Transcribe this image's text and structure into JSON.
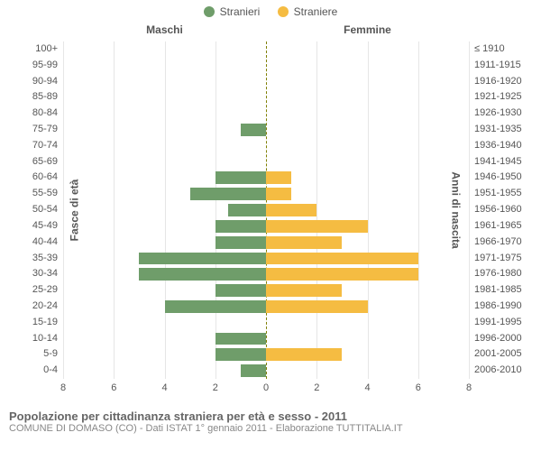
{
  "legend": {
    "male": {
      "label": "Stranieri",
      "color": "#6f9d6a"
    },
    "female": {
      "label": "Straniere",
      "color": "#f5bc42"
    }
  },
  "headers": {
    "male": "Maschi",
    "female": "Femmine"
  },
  "axis_titles": {
    "left": "Fasce di età",
    "right": "Anni di nascita"
  },
  "chart": {
    "type": "population-pyramid",
    "x_max": 8,
    "x_ticks": [
      0,
      2,
      4,
      6,
      8
    ],
    "grid_color": "#e6e6e6",
    "center_line_color": "#808000",
    "center_line_dash": "3,3",
    "background_color": "#ffffff",
    "tick_fontsize": 11,
    "header_fontsize": 12,
    "rows": [
      {
        "age": "100+",
        "birth": "≤ 1910",
        "m": 0,
        "f": 0
      },
      {
        "age": "95-99",
        "birth": "1911-1915",
        "m": 0,
        "f": 0
      },
      {
        "age": "90-94",
        "birth": "1916-1920",
        "m": 0,
        "f": 0
      },
      {
        "age": "85-89",
        "birth": "1921-1925",
        "m": 0,
        "f": 0
      },
      {
        "age": "80-84",
        "birth": "1926-1930",
        "m": 0,
        "f": 0
      },
      {
        "age": "75-79",
        "birth": "1931-1935",
        "m": 1,
        "f": 0
      },
      {
        "age": "70-74",
        "birth": "1936-1940",
        "m": 0,
        "f": 0
      },
      {
        "age": "65-69",
        "birth": "1941-1945",
        "m": 0,
        "f": 0
      },
      {
        "age": "60-64",
        "birth": "1946-1950",
        "m": 2,
        "f": 1
      },
      {
        "age": "55-59",
        "birth": "1951-1955",
        "m": 3,
        "f": 1
      },
      {
        "age": "50-54",
        "birth": "1956-1960",
        "m": 1.5,
        "f": 2
      },
      {
        "age": "45-49",
        "birth": "1961-1965",
        "m": 2,
        "f": 4
      },
      {
        "age": "40-44",
        "birth": "1966-1970",
        "m": 2,
        "f": 3
      },
      {
        "age": "35-39",
        "birth": "1971-1975",
        "m": 5,
        "f": 6
      },
      {
        "age": "30-34",
        "birth": "1976-1980",
        "m": 5,
        "f": 6
      },
      {
        "age": "25-29",
        "birth": "1981-1985",
        "m": 2,
        "f": 3
      },
      {
        "age": "20-24",
        "birth": "1986-1990",
        "m": 4,
        "f": 4
      },
      {
        "age": "15-19",
        "birth": "1991-1995",
        "m": 0,
        "f": 0
      },
      {
        "age": "10-14",
        "birth": "1996-2000",
        "m": 2,
        "f": 0
      },
      {
        "age": "5-9",
        "birth": "2001-2005",
        "m": 2,
        "f": 3
      },
      {
        "age": "0-4",
        "birth": "2006-2010",
        "m": 1,
        "f": 0
      }
    ]
  },
  "footer": {
    "title": "Popolazione per cittadinanza straniera per età e sesso - 2011",
    "subtitle": "COMUNE DI DOMASO (CO) - Dati ISTAT 1° gennaio 2011 - Elaborazione TUTTITALIA.IT"
  }
}
